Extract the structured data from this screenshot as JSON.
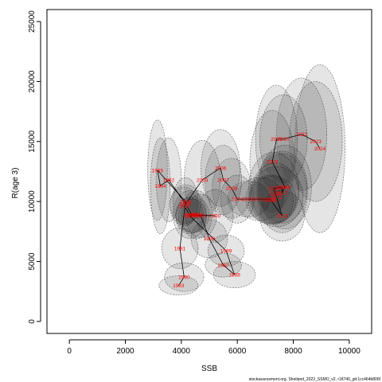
{
  "chart_data": {
    "type": "scatter",
    "title": "",
    "xlabel": "SSB",
    "ylabel": "R(age 3)",
    "xlim": [
      -800,
      10800
    ],
    "ylim": [
      -1000,
      26000
    ],
    "xticks": [
      0,
      2000,
      4000,
      6000,
      8000,
      10000
    ],
    "yticks": [
      0,
      5000,
      10000,
      15000,
      20000,
      25000
    ],
    "grid": false,
    "connected": true,
    "footnote": "stockassessment.org, Shetland_2022_SSMO_v2, r18740_git:1cc464b806f",
    "points": [
      {
        "year": "1983",
        "ssb": 3900,
        "rec": 3000,
        "ell": [
          700,
          800
        ]
      },
      {
        "year": "1984",
        "ssb": 3250,
        "rec": 11300,
        "ell": [
          350,
          4000
        ]
      },
      {
        "year": "1985",
        "ssb": 3150,
        "rec": 12600,
        "ell": [
          350,
          4200
        ]
      },
      {
        "year": "1986",
        "ssb": 4150,
        "rec": 10000,
        "ell": [
          450,
          2000
        ]
      },
      {
        "year": "1987",
        "ssb": 5500,
        "rec": 4700,
        "ell": [
          650,
          1000
        ]
      },
      {
        "year": "1988",
        "ssb": 5900,
        "rec": 3900,
        "ell": [
          750,
          1100
        ]
      },
      {
        "year": "1989",
        "ssb": 5600,
        "rec": 5900,
        "ell": [
          650,
          1300
        ]
      },
      {
        "year": "1990",
        "ssb": 4100,
        "rec": 3700,
        "ell": [
          700,
          1200
        ]
      },
      {
        "year": "1991",
        "ssb": 3950,
        "rec": 6100,
        "ell": [
          650,
          1700
        ]
      },
      {
        "year": "1992",
        "ssb": 3550,
        "rec": 11800,
        "ell": [
          450,
          3500
        ]
      },
      {
        "year": "1993",
        "ssb": 4150,
        "rec": 9800,
        "ell": [
          550,
          1600
        ]
      },
      {
        "year": "1994",
        "ssb": 4400,
        "rec": 8800,
        "ell": [
          500,
          1400
        ]
      },
      {
        "year": "1995",
        "ssb": 4700,
        "rec": 8800,
        "ell": [
          550,
          1800
        ]
      },
      {
        "year": "1996",
        "ssb": 5000,
        "rec": 6900,
        "ell": [
          650,
          1600
        ]
      },
      {
        "year": "1997",
        "ssb": 4300,
        "rec": 8800,
        "ell": [
          500,
          1500
        ]
      },
      {
        "year": "1998",
        "ssb": 4550,
        "rec": 8900,
        "ell": [
          550,
          2000
        ]
      },
      {
        "year": "1999",
        "ssb": 4400,
        "rec": 8900,
        "ell": [
          600,
          1500
        ]
      },
      {
        "year": "2000",
        "ssb": 5200,
        "rec": 8800,
        "ell": [
          650,
          2200
        ]
      },
      {
        "year": "2001",
        "ssb": 4300,
        "rec": 8900,
        "ell": [
          600,
          2000
        ]
      },
      {
        "year": "2002",
        "ssb": 4100,
        "rec": 9600,
        "ell": [
          500,
          1600
        ]
      },
      {
        "year": "2003",
        "ssb": 4750,
        "rec": 11800,
        "ell": [
          650,
          3300
        ]
      },
      {
        "year": "2004",
        "ssb": 6000,
        "rec": 10200,
        "ell": [
          600,
          2000
        ]
      },
      {
        "year": "2005",
        "ssb": 7200,
        "rec": 10100,
        "ell": [
          800,
          2000
        ]
      },
      {
        "year": "2006",
        "ssb": 5400,
        "rec": 12800,
        "ell": [
          700,
          3200
        ]
      },
      {
        "year": "2007",
        "ssb": 5500,
        "rec": 11800,
        "ell": [
          650,
          2900
        ]
      },
      {
        "year": "2008",
        "ssb": 5800,
        "rec": 11100,
        "ell": [
          700,
          2500
        ]
      },
      {
        "year": "2009",
        "ssb": 6400,
        "rec": 10200,
        "ell": [
          750,
          1500
        ]
      },
      {
        "year": "2010",
        "ssb": 6800,
        "rec": 10200,
        "ell": [
          850,
          1800
        ]
      },
      {
        "year": "2011",
        "ssb": 7200,
        "rec": 10200,
        "ell": [
          900,
          2000
        ]
      },
      {
        "year": "2012",
        "ssb": 7400,
        "rec": 10400,
        "ell": [
          950,
          2500
        ]
      },
      {
        "year": "2013",
        "ssb": 7600,
        "rec": 8800,
        "ell": [
          800,
          2100
        ]
      },
      {
        "year": "2014",
        "ssb": 7350,
        "rec": 10700,
        "ell": [
          850,
          2500
        ]
      },
      {
        "year": "2015",
        "ssb": 7300,
        "rec": 11100,
        "ell": [
          900,
          3000
        ]
      },
      {
        "year": "2016",
        "ssb": 7600,
        "rec": 11200,
        "ell": [
          900,
          3000
        ]
      },
      {
        "year": "2017",
        "ssb": 7600,
        "rec": 10700,
        "ell": [
          900,
          3300
        ]
      },
      {
        "year": "2018",
        "ssb": 7700,
        "rec": 11200,
        "ell": [
          950,
          3500
        ]
      },
      {
        "year": "2019",
        "ssb": 7250,
        "rec": 13300,
        "ell": [
          800,
          4300
        ]
      },
      {
        "year": "2020",
        "ssb": 7650,
        "rec": 15200,
        "ell": [
          850,
          3700
        ]
      },
      {
        "year": "2021",
        "ssb": 7400,
        "rec": 15200,
        "ell": [
          750,
          4500
        ]
      },
      {
        "year": "2022",
        "ssb": 8300,
        "rec": 15600,
        "ell": [
          900,
          4700
        ]
      },
      {
        "year": "2023",
        "ssb": 8800,
        "rec": 15000,
        "ell": [
          950,
          5000
        ]
      },
      {
        "year": "2024",
        "ssb": 8950,
        "rec": 14400,
        "ell": [
          900,
          7000
        ]
      }
    ],
    "path": [
      "1983",
      "1990",
      "1991",
      "1986",
      "1985",
      "1984",
      "1992",
      "1993",
      "1994",
      "1995",
      "1996",
      "1987",
      "1988",
      "1989",
      "1997",
      "1998",
      "1999",
      "2000",
      "2001",
      "2002",
      "2003",
      "2006",
      "2007",
      "2008",
      "2004",
      "2009",
      "2010",
      "2011",
      "2005",
      "2013",
      "2012",
      "2014",
      "2015",
      "2016",
      "2017",
      "2018",
      "2019",
      "2021",
      "2020",
      "2022",
      "2023",
      "2024"
    ]
  },
  "colors": {
    "ellipse_fill": "#000000",
    "ellipse_stroke": "#606060",
    "label": "#ff0000",
    "line": "#000000"
  }
}
